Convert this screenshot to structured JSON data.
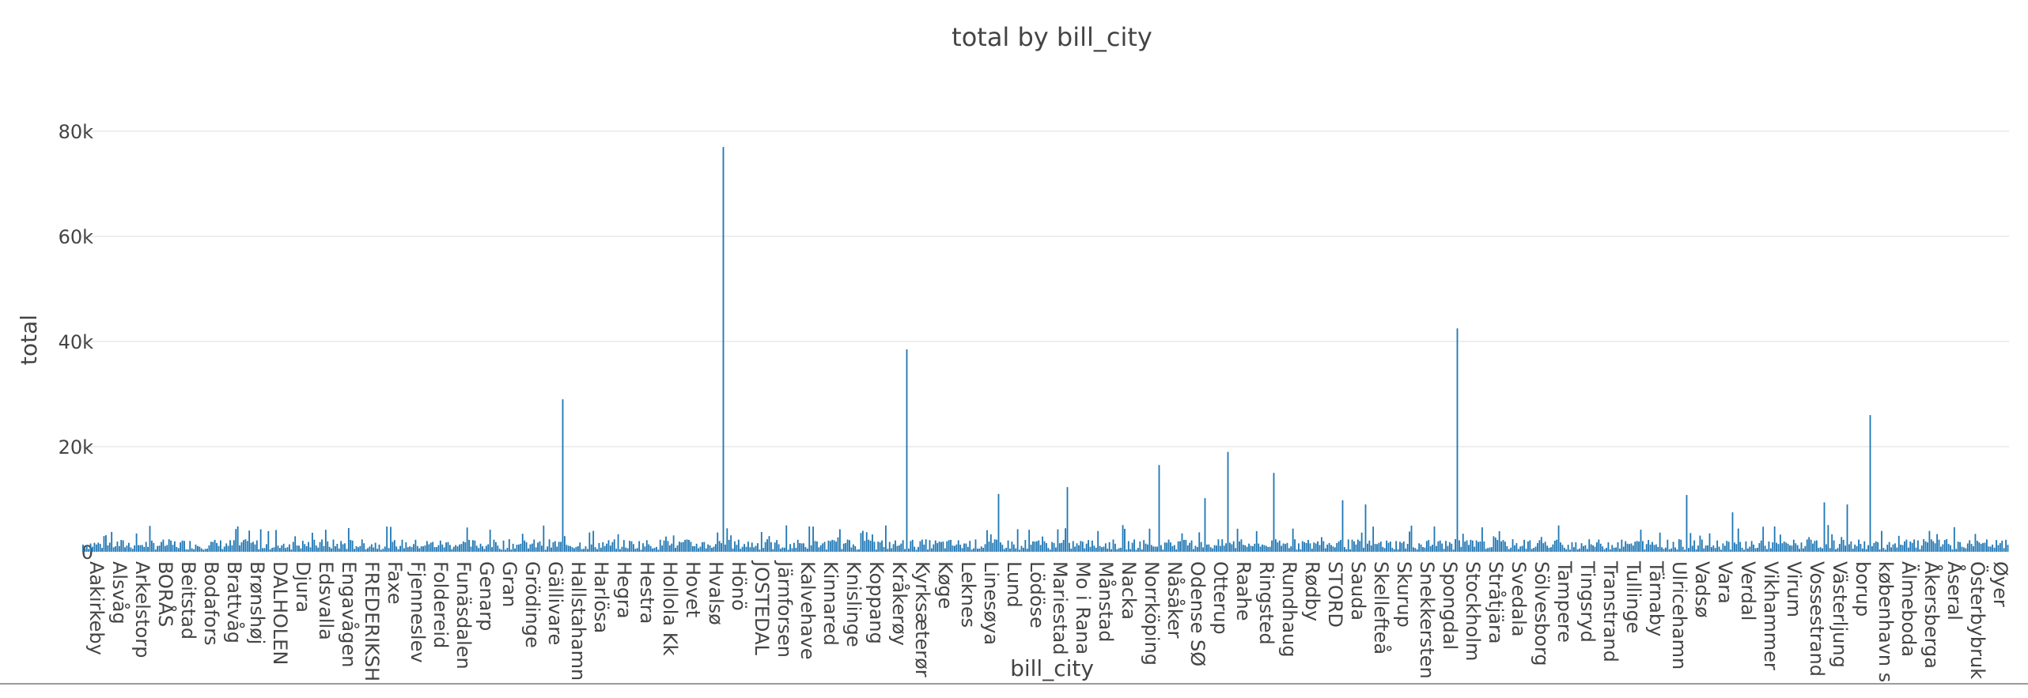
{
  "chart_data": {
    "type": "bar",
    "title": "total by bill_city",
    "xlabel": "bill_city",
    "ylabel": "total",
    "ylim": [
      0,
      80000
    ],
    "yticks": [
      0,
      20000,
      40000,
      60000,
      80000
    ],
    "ytick_labels": [
      "0",
      "20k",
      "40k",
      "60k",
      "80k"
    ],
    "grid": true,
    "legend": "none",
    "bar_color": "#1f77b4",
    "x_tick_labels": [
      "Aakirkeby",
      "Alsvåg",
      "Arkelstorp",
      "BORÅS",
      "Beitstad",
      "Bodafors",
      "Brattvåg",
      "Brønshøj",
      "DALHOLEN",
      "Djura",
      "Edsvalla",
      "Engavågen",
      "FREDERIKSH",
      "Faxe",
      "Fjenneslev",
      "Foldereid",
      "Funäsdalen",
      "Genarp",
      "Gran",
      "Grödinge",
      "Gällivare",
      "Hallstahamn",
      "Harlösa",
      "Hegra",
      "Hestra",
      "Hollola Kk",
      "Hovet",
      "Hvalsø",
      "Hönö",
      "JOSTEDAL",
      "Järnforsen",
      "Kalvehave",
      "Kinnared",
      "Knislinge",
      "Koppang",
      "Kråkerøy",
      "Kyrksæterør",
      "Køge",
      "Leknes",
      "Linesøya",
      "Lund",
      "Lödöse",
      "Mariestad",
      "Mo i Rana",
      "Månstad",
      "Nacka",
      "Norrköping",
      "Nåsåker",
      "Odense SØ",
      "Otterup",
      "Raahe",
      "Ringsted",
      "Rundhaug",
      "Rødby",
      "STORD",
      "Sauda",
      "Skellefteå",
      "Skurup",
      "Snekkersten",
      "Spongdal",
      "Stockholm",
      "Stråtjära",
      "Svedala",
      "Sölvesborg",
      "Tampere",
      "Tingsryd",
      "Transtrand",
      "Tullinge",
      "Tärnaby",
      "Ulricehamn",
      "Vadsø",
      "Vara",
      "Verdal",
      "Vikhammer",
      "Virum",
      "Vossestrand",
      "Västerljung",
      "borup",
      "københavn s",
      "Älmeboda",
      "Åkersberga",
      "Åseral",
      "Österbybruk",
      "Øyer"
    ],
    "peaks": [
      {
        "after_label": "Gällivare",
        "value": 29000
      },
      {
        "after_label": "Hvalsø",
        "value": 77000
      },
      {
        "after_label": "Kråkerøy",
        "value": 38500
      },
      {
        "after_label": "Linesøya",
        "value": 11000
      },
      {
        "after_label": "Mariestad",
        "value": 12300
      },
      {
        "after_label": "Norrköping",
        "value": 16500
      },
      {
        "after_label": "Odense SØ",
        "value": 10200
      },
      {
        "after_label": "Otterup",
        "value": 19000
      },
      {
        "after_label": "Ringsted",
        "value": 15000
      },
      {
        "after_label": "STORD",
        "value": 9800
      },
      {
        "after_label": "Sauda",
        "value": 9000
      },
      {
        "after_label": "Snekkersten",
        "value": 4800
      },
      {
        "after_label": "Spongdal",
        "value": 42500
      },
      {
        "after_label": "Tullinge",
        "value": 4200
      },
      {
        "after_label": "Ulricehamn",
        "value": 10800
      },
      {
        "after_label": "Vadsø",
        "value": 3500
      },
      {
        "after_label": "Vara",
        "value": 7500
      },
      {
        "after_label": "Vossestrand",
        "value": 9400
      },
      {
        "after_label": "Västerljung",
        "value": 9000
      },
      {
        "after_label": "borup",
        "value": 26000
      }
    ],
    "background_bar_level_typical": 1500
  }
}
